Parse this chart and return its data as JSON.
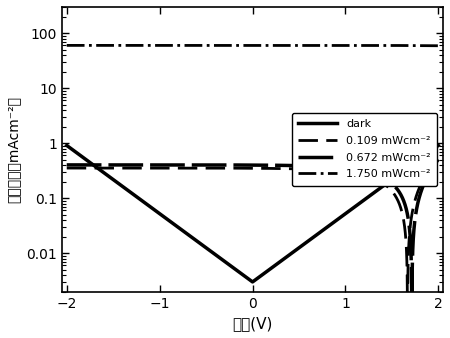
{
  "xlabel": "电压(V)",
  "ylabel": "电流密度（mAcm⁻²）",
  "xlim": [
    -2.05,
    2.05
  ],
  "ylim_log": [
    0.002,
    300
  ],
  "xticks": [
    -2,
    -1,
    0,
    1,
    2
  ],
  "yticks_major": [
    0.01,
    0.1,
    1,
    10,
    100
  ],
  "ytick_labels": [
    "0.01",
    "0.1",
    "1",
    "10",
    "100"
  ],
  "legend_labels": [
    "dark",
    "0.109 mWcm⁻²",
    "0.672 mWcm⁻²",
    "1.750 mWcm⁻²"
  ],
  "dark_J0": 0.003,
  "dark_Vt": 0.058,
  "dark_Jmin": 0.003,
  "dark_Jsat_rev": 0.85,
  "light1_Jph": 0.38,
  "light2_Jph": 0.42,
  "light3_Jph": 55.0,
  "light_Vt": 0.055,
  "figsize": [
    4.5,
    3.38
  ],
  "dpi": 100
}
